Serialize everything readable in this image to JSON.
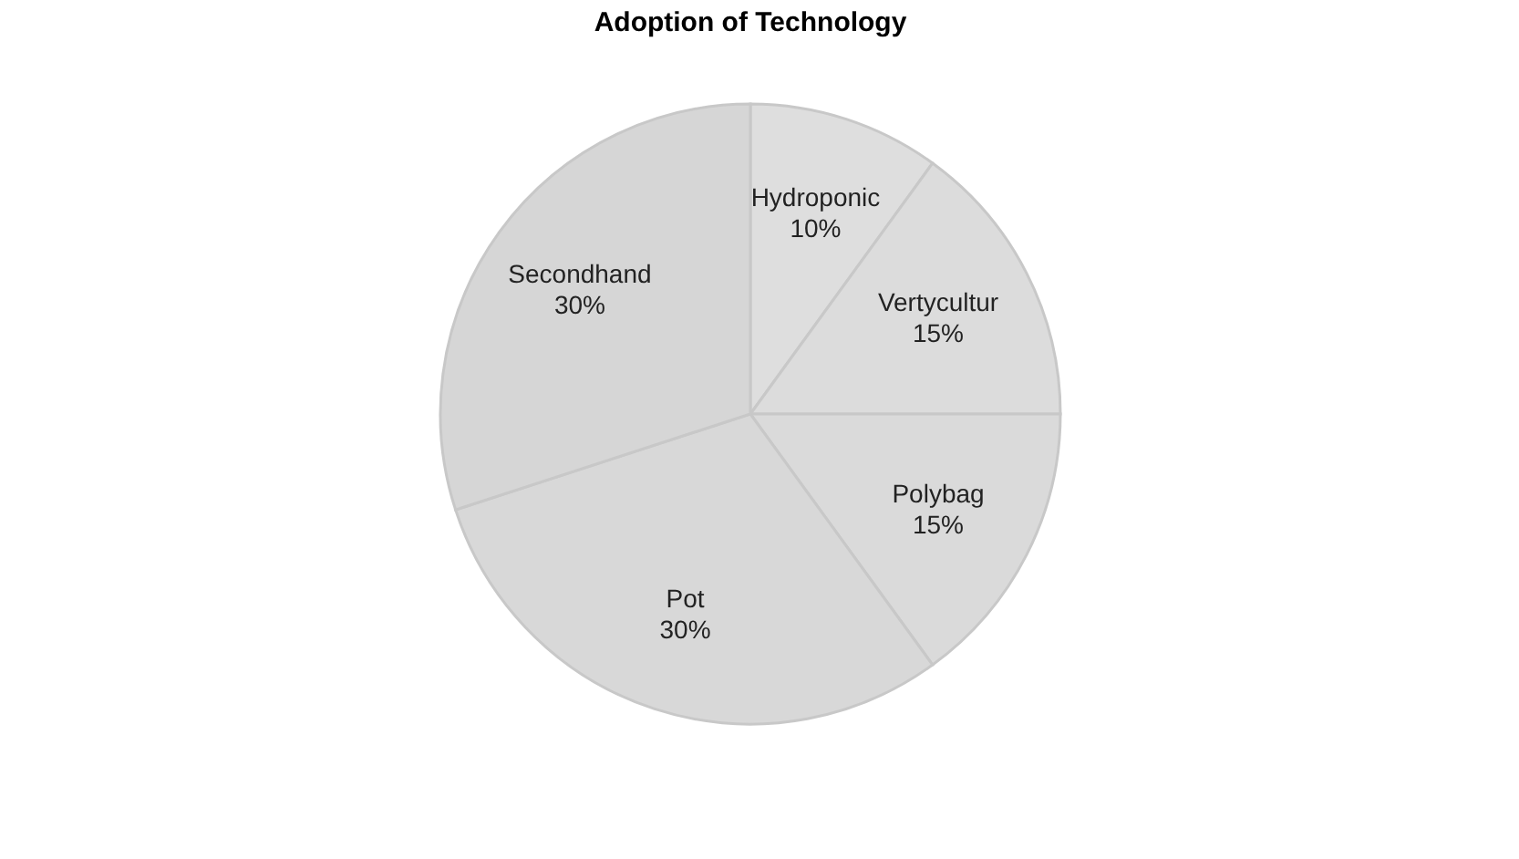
{
  "chart_data": {
    "type": "pie",
    "title": "Adoption of Technology",
    "categories": [
      "Hydroponic",
      "Vertycultur",
      "Polybag",
      "Pot",
      "Secondhand"
    ],
    "values": [
      10,
      15,
      15,
      30,
      30
    ],
    "value_labels": [
      "10%",
      "15%",
      "15%",
      "30%",
      "30%"
    ],
    "colors": [
      "#dedede",
      "#dcdcdc",
      "#dadada",
      "#d8d8d8",
      "#d6d6d6"
    ]
  }
}
